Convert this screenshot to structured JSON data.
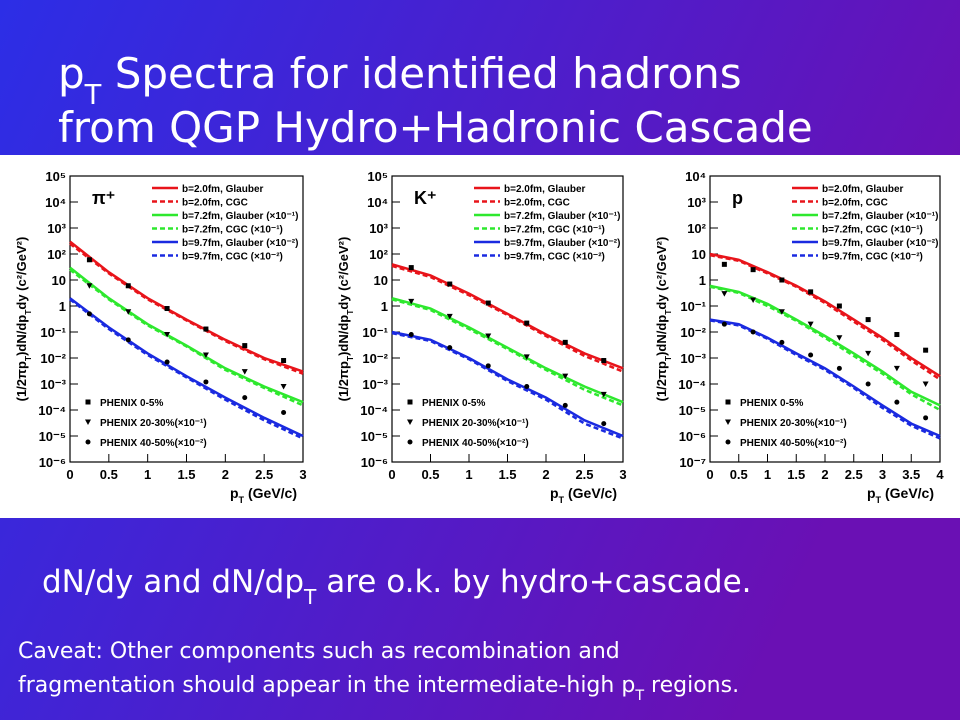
{
  "slide": {
    "title_line1": [
      "p",
      "T",
      " Spectra for identified hadrons"
    ],
    "title_line2": [
      "from QGP Hydro+Hadronic Cascade"
    ],
    "statement": [
      "dN/dy and dN/dp",
      "T",
      " are o.k. by hydro+cascade."
    ],
    "caveat_line1": [
      "Caveat: Other components such as recombination and"
    ],
    "caveat_line2": [
      "fragmentation should appear in the intermediate-high p",
      "T",
      " regions."
    ]
  },
  "chart_data": [
    {
      "type": "line",
      "particle": "π⁺",
      "log_y": true,
      "x_label": [
        "p",
        "T",
        " (GeV/c)"
      ],
      "y_label": [
        "(1/2πp",
        "T",
        ")dN/dp",
        "T",
        "dy (c²/GeV²)"
      ],
      "xlim": [
        0,
        3
      ],
      "xticks": [
        0,
        0.5,
        1,
        1.5,
        2,
        2.5,
        3
      ],
      "ylim": [
        1e-06,
        100000
      ],
      "yticks": [
        {
          "value": 100000,
          "label": "10⁵"
        },
        {
          "value": 10000,
          "label": "10⁴"
        },
        {
          "value": 1000,
          "label": "10³"
        },
        {
          "value": 100,
          "label": "10²"
        },
        10,
        1,
        {
          "value": 0.1,
          "label": "10⁻¹"
        },
        {
          "value": 0.01,
          "label": "10⁻²"
        },
        {
          "value": 0.001,
          "label": "10⁻³"
        },
        {
          "value": 0.0001,
          "label": "10⁻⁴"
        },
        {
          "value": 1e-05,
          "label": "10⁻⁵"
        },
        {
          "value": 1e-06,
          "label": "10⁻⁶"
        }
      ],
      "series": [
        {
          "name": "b=2.0fm, Glauber",
          "color": "#e8141a",
          "dash": false,
          "x": [
            0,
            0.5,
            1,
            1.5,
            2,
            2.5,
            3
          ],
          "values": [
            300,
            20,
            2,
            0.3,
            0.05,
            0.01,
            0.003
          ]
        },
        {
          "name": "b=2.0fm, CGC",
          "color": "#e8141a",
          "dash": true,
          "x": [
            0,
            0.5,
            1,
            1.5,
            2,
            2.5,
            3
          ],
          "values": [
            250,
            18,
            1.8,
            0.28,
            0.045,
            0.009,
            0.0025
          ]
        },
        {
          "name": "b=7.2fm, Glauber (×10⁻¹)",
          "color": "#2ee82e",
          "dash": false,
          "x": [
            0,
            0.5,
            1,
            1.5,
            2,
            2.5,
            3
          ],
          "values": [
            30,
            2,
            0.2,
            0.03,
            0.004,
            0.0008,
            0.0002
          ]
        },
        {
          "name": "b=7.2fm, CGC (×10⁻¹)",
          "color": "#2ee82e",
          "dash": true,
          "x": [
            0,
            0.5,
            1,
            1.5,
            2,
            2.5,
            3
          ],
          "values": [
            25,
            1.8,
            0.18,
            0.028,
            0.0035,
            0.0007,
            0.00015
          ]
        },
        {
          "name": "b=9.7fm, Glauber (×10⁻²)",
          "color": "#1a2ae0",
          "dash": false,
          "x": [
            0,
            0.5,
            1,
            1.5,
            2,
            2.5,
            3
          ],
          "values": [
            2,
            0.15,
            0.015,
            0.002,
            0.0003,
            5e-05,
            1e-05
          ]
        },
        {
          "name": "b=9.7fm, CGC (×10⁻²)",
          "color": "#1a2ae0",
          "dash": true,
          "x": [
            0,
            0.5,
            1,
            1.5,
            2,
            2.5,
            3
          ],
          "values": [
            1.8,
            0.13,
            0.013,
            0.0018,
            0.00025,
            4e-05,
            8e-06
          ]
        },
        {
          "name": "PHENIX 0-5%",
          "color": "#000000",
          "marker": "square",
          "x": [
            0.25,
            0.75,
            1.25,
            1.75,
            2.25,
            2.75
          ],
          "values": [
            60,
            6,
            0.8,
            0.13,
            0.03,
            0.008
          ]
        },
        {
          "name": "PHENIX 20-30%(×10⁻¹)",
          "color": "#000000",
          "marker": "triangle",
          "x": [
            0.25,
            0.75,
            1.25,
            1.75,
            2.25,
            2.75
          ],
          "values": [
            6,
            0.6,
            0.08,
            0.013,
            0.003,
            0.0008
          ]
        },
        {
          "name": "PHENIX 40-50%(×10⁻²)",
          "color": "#000000",
          "marker": "circle",
          "x": [
            0.25,
            0.75,
            1.25,
            1.75,
            2.25,
            2.75
          ],
          "values": [
            0.5,
            0.05,
            0.007,
            0.0012,
            0.0003,
            8e-05
          ]
        }
      ]
    },
    {
      "type": "line",
      "particle": "K⁺",
      "log_y": true,
      "x_label": [
        "p",
        "T",
        " (GeV/c)"
      ],
      "y_label": [
        "(1/2πp",
        "T",
        ")dN/dp",
        "T",
        "dy (c²/GeV²)"
      ],
      "xlim": [
        0,
        3
      ],
      "xticks": [
        0,
        0.5,
        1,
        1.5,
        2,
        2.5,
        3
      ],
      "ylim": [
        1e-06,
        100000
      ],
      "yticks": [
        {
          "value": 100000,
          "label": "10⁵"
        },
        {
          "value": 10000,
          "label": "10⁴"
        },
        {
          "value": 1000,
          "label": "10³"
        },
        {
          "value": 100,
          "label": "10²"
        },
        10,
        1,
        {
          "value": 0.1,
          "label": "10⁻¹"
        },
        {
          "value": 0.01,
          "label": "10⁻²"
        },
        {
          "value": 0.001,
          "label": "10⁻³"
        },
        {
          "value": 0.0001,
          "label": "10⁻⁴"
        },
        {
          "value": 1e-05,
          "label": "10⁻⁵"
        },
        {
          "value": 1e-06,
          "label": "10⁻⁶"
        }
      ],
      "series": [
        {
          "name": "b=2.0fm, Glauber",
          "color": "#e8141a",
          "dash": false,
          "x": [
            0,
            0.5,
            1,
            1.5,
            2,
            2.5,
            3
          ],
          "values": [
            40,
            15,
            3,
            0.5,
            0.08,
            0.015,
            0.004
          ]
        },
        {
          "name": "b=2.0fm, CGC",
          "color": "#e8141a",
          "dash": true,
          "x": [
            0,
            0.5,
            1,
            1.5,
            2,
            2.5,
            3
          ],
          "values": [
            35,
            13,
            2.6,
            0.45,
            0.07,
            0.012,
            0.003
          ]
        },
        {
          "name": "b=7.2fm, Glauber (×10⁻¹)",
          "color": "#2ee82e",
          "dash": false,
          "x": [
            0,
            0.5,
            1,
            1.5,
            2,
            2.5,
            3
          ],
          "values": [
            2,
            0.8,
            0.15,
            0.025,
            0.004,
            0.0008,
            0.0002
          ]
        },
        {
          "name": "b=7.2fm, CGC (×10⁻¹)",
          "color": "#2ee82e",
          "dash": true,
          "x": [
            0,
            0.5,
            1,
            1.5,
            2,
            2.5,
            3
          ],
          "values": [
            1.8,
            0.7,
            0.13,
            0.022,
            0.0035,
            0.0006,
            0.00015
          ]
        },
        {
          "name": "b=9.7fm, Glauber (×10⁻²)",
          "color": "#1a2ae0",
          "dash": false,
          "x": [
            0,
            0.5,
            1,
            1.5,
            2,
            2.5,
            3
          ],
          "values": [
            0.1,
            0.05,
            0.01,
            0.0015,
            0.0003,
            4e-05,
            1e-05
          ]
        },
        {
          "name": "b=9.7fm, CGC (×10⁻²)",
          "color": "#1a2ae0",
          "dash": true,
          "x": [
            0,
            0.5,
            1,
            1.5,
            2,
            2.5,
            3
          ],
          "values": [
            0.09,
            0.045,
            0.009,
            0.0013,
            0.00025,
            3e-05,
            8e-06
          ]
        },
        {
          "name": "PHENIX 0-5%",
          "color": "#000000",
          "marker": "square",
          "x": [
            0.25,
            0.75,
            1.25,
            1.75,
            2.25,
            2.75
          ],
          "values": [
            30,
            7,
            1.3,
            0.22,
            0.04,
            0.008
          ]
        },
        {
          "name": "PHENIX 20-30%(×10⁻¹)",
          "color": "#000000",
          "marker": "triangle",
          "x": [
            0.25,
            0.75,
            1.25,
            1.75,
            2.25,
            2.75
          ],
          "values": [
            1.5,
            0.4,
            0.07,
            0.011,
            0.002,
            0.0004
          ]
        },
        {
          "name": "PHENIX 40-50%(×10⁻²)",
          "color": "#000000",
          "marker": "circle",
          "x": [
            0.25,
            0.75,
            1.25,
            1.75,
            2.25,
            2.75
          ],
          "values": [
            0.08,
            0.025,
            0.005,
            0.0008,
            0.00015,
            3e-05
          ]
        }
      ]
    },
    {
      "type": "line",
      "particle": "p",
      "log_y": true,
      "x_label": [
        "p",
        "T",
        " (GeV/c)"
      ],
      "y_label": [
        "(1/2πp",
        "T",
        ")dN/dp",
        "T",
        "dy (c²/GeV²)"
      ],
      "xlim": [
        0,
        4
      ],
      "xticks": [
        0,
        0.5,
        1,
        1.5,
        2,
        2.5,
        3,
        3.5,
        4
      ],
      "ylim": [
        1e-07,
        10000
      ],
      "yticks": [
        {
          "value": 10000,
          "label": "10⁴"
        },
        {
          "value": 1000,
          "label": "10³"
        },
        {
          "value": 100,
          "label": "10²"
        },
        10,
        1,
        {
          "value": 0.1,
          "label": "10⁻¹"
        },
        {
          "value": 0.01,
          "label": "10⁻²"
        },
        {
          "value": 0.001,
          "label": "10⁻³"
        },
        {
          "value": 0.0001,
          "label": "10⁻⁴"
        },
        {
          "value": 1e-05,
          "label": "10⁻⁵"
        },
        {
          "value": 1e-06,
          "label": "10⁻⁶"
        },
        {
          "value": 1e-07,
          "label": "10⁻⁷"
        }
      ],
      "series": [
        {
          "name": "b=2.0fm, Glauber",
          "color": "#e8141a",
          "dash": false,
          "x": [
            0,
            0.5,
            1,
            1.5,
            2,
            2.5,
            3,
            3.5,
            4
          ],
          "values": [
            10,
            6,
            2,
            0.6,
            0.15,
            0.03,
            0.006,
            0.001,
            0.0002
          ]
        },
        {
          "name": "b=2.0fm, CGC",
          "color": "#e8141a",
          "dash": true,
          "x": [
            0,
            0.5,
            1,
            1.5,
            2,
            2.5,
            3,
            3.5,
            4
          ],
          "values": [
            9,
            5.5,
            1.8,
            0.55,
            0.13,
            0.025,
            0.005,
            0.0008,
            0.00015
          ]
        },
        {
          "name": "b=7.2fm, Glauber (×10⁻¹)",
          "color": "#2ee82e",
          "dash": false,
          "x": [
            0,
            0.5,
            1,
            1.5,
            2,
            2.5,
            3,
            3.5,
            4
          ],
          "values": [
            0.6,
            0.35,
            0.12,
            0.03,
            0.007,
            0.0015,
            0.0003,
            5e-05,
            1.5e-05
          ]
        },
        {
          "name": "b=7.2fm, CGC (×10⁻¹)",
          "color": "#2ee82e",
          "dash": true,
          "x": [
            0,
            0.5,
            1,
            1.5,
            2,
            2.5,
            3,
            3.5,
            4
          ],
          "values": [
            0.55,
            0.32,
            0.1,
            0.027,
            0.006,
            0.0012,
            0.00025,
            4e-05,
            1e-05
          ]
        },
        {
          "name": "b=9.7fm, Glauber (×10⁻²)",
          "color": "#1a2ae0",
          "dash": false,
          "x": [
            0,
            0.5,
            1,
            1.5,
            2,
            2.5,
            3,
            3.5,
            4
          ],
          "values": [
            0.03,
            0.02,
            0.006,
            0.0015,
            0.0004,
            8e-05,
            1.5e-05,
            3e-06,
            1e-06
          ]
        },
        {
          "name": "b=9.7fm, CGC (×10⁻²)",
          "color": "#1a2ae0",
          "dash": true,
          "x": [
            0,
            0.5,
            1,
            1.5,
            2,
            2.5,
            3,
            3.5,
            4
          ],
          "values": [
            0.028,
            0.018,
            0.0055,
            0.0013,
            0.00035,
            7e-05,
            1.2e-05,
            2.5e-06,
            8e-07
          ]
        },
        {
          "name": "PHENIX 0-5%",
          "color": "#000000",
          "marker": "square",
          "x": [
            0.25,
            0.75,
            1.25,
            1.75,
            2.25,
            2.75,
            3.25,
            3.75
          ],
          "values": [
            4,
            2.5,
            1,
            0.35,
            0.1,
            0.03,
            0.008,
            0.002
          ]
        },
        {
          "name": "PHENIX 20-30%(×10⁻¹)",
          "color": "#000000",
          "marker": "triangle",
          "x": [
            0.25,
            0.75,
            1.25,
            1.75,
            2.25,
            2.75,
            3.25,
            3.75
          ],
          "values": [
            0.3,
            0.17,
            0.06,
            0.02,
            0.006,
            0.0015,
            0.0004,
            0.0001
          ]
        },
        {
          "name": "PHENIX 40-50%(×10⁻²)",
          "color": "#000000",
          "marker": "circle",
          "x": [
            0.25,
            0.75,
            1.25,
            1.75,
            2.25,
            2.75,
            3.25,
            3.75
          ],
          "values": [
            0.02,
            0.01,
            0.004,
            0.0013,
            0.0004,
            0.0001,
            2e-05,
            5e-06
          ]
        }
      ]
    }
  ]
}
